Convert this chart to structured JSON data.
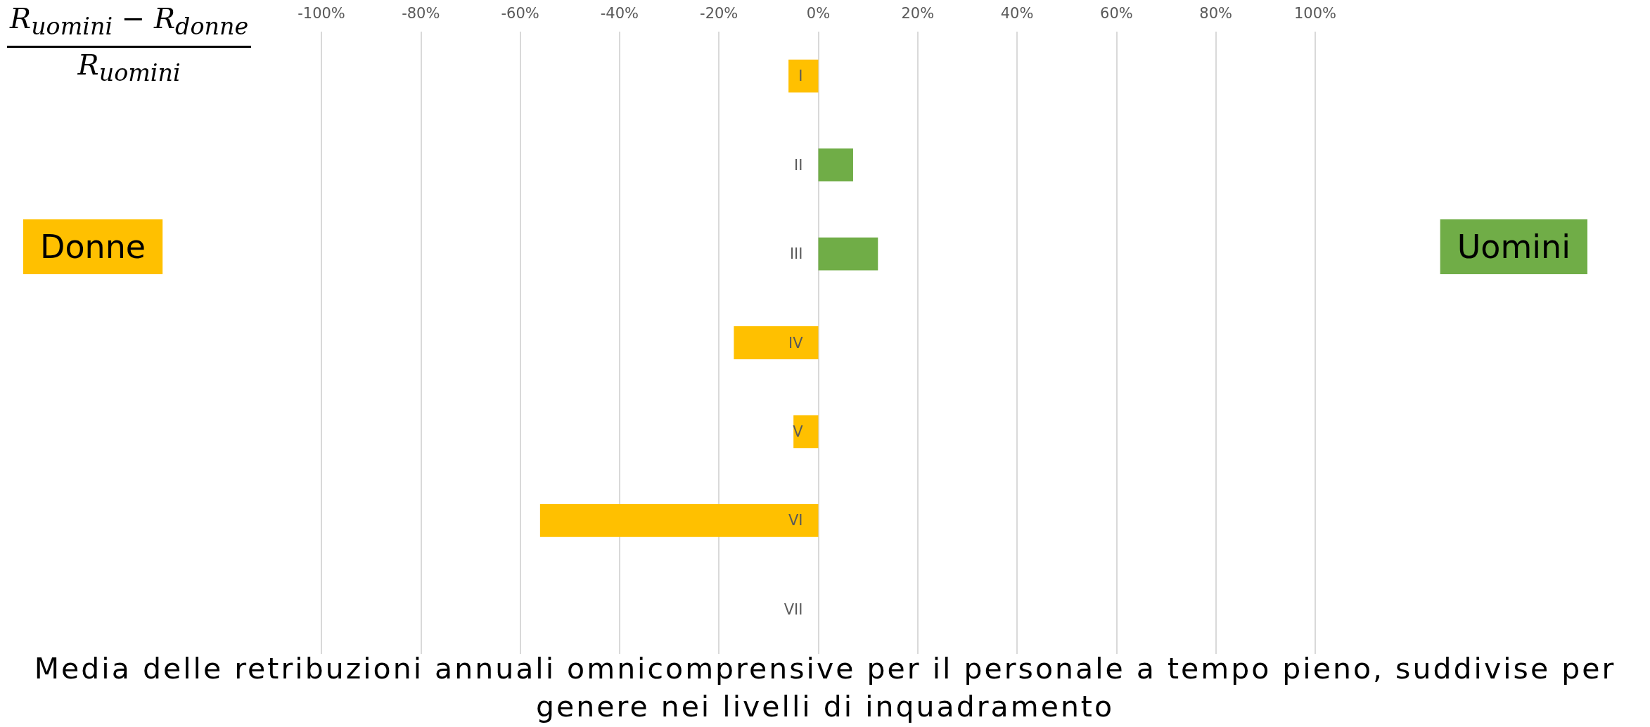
{
  "chart_data": {
    "type": "bar",
    "orientation": "horizontal",
    "stacked": true,
    "title": "Media delle retribuzioni annuali omnicomprensive per il personale a tempo pieno, suddivise per genere nei livelli di inquadramento",
    "annotations": [
      "R$_{uomini}$ − R$_{donne}$",
      "R$_{uomini}$"
    ],
    "categories": [
      "I",
      "II",
      "III",
      "IV",
      "V",
      "VI",
      "VII"
    ],
    "series": [
      {
        "name": "Donne",
        "color": "#ffc000",
        "values": [
          -6,
          null,
          null,
          -17,
          -5,
          -56,
          null
        ]
      },
      {
        "name": "Uomini",
        "color": "#70ad47",
        "values": [
          null,
          7,
          12,
          null,
          null,
          null,
          null
        ]
      }
    ],
    "xlim": [
      -100,
      100
    ],
    "xticks": [
      {
        "value": -100,
        "label": "-100%"
      },
      {
        "value": -80,
        "label": "-80%"
      },
      {
        "value": -60,
        "label": "-60%"
      },
      {
        "value": -40,
        "label": "-40%"
      },
      {
        "value": -20,
        "label": "-20%"
      },
      {
        "value": 0,
        "label": "0%"
      },
      {
        "value": 20,
        "label": "20%"
      },
      {
        "value": 40,
        "label": "40%"
      },
      {
        "value": 60,
        "label": "60%"
      },
      {
        "value": 80,
        "label": "80%"
      },
      {
        "value": 100,
        "label": "100%"
      }
    ],
    "grid": "x",
    "legend": "left right"
  }
}
